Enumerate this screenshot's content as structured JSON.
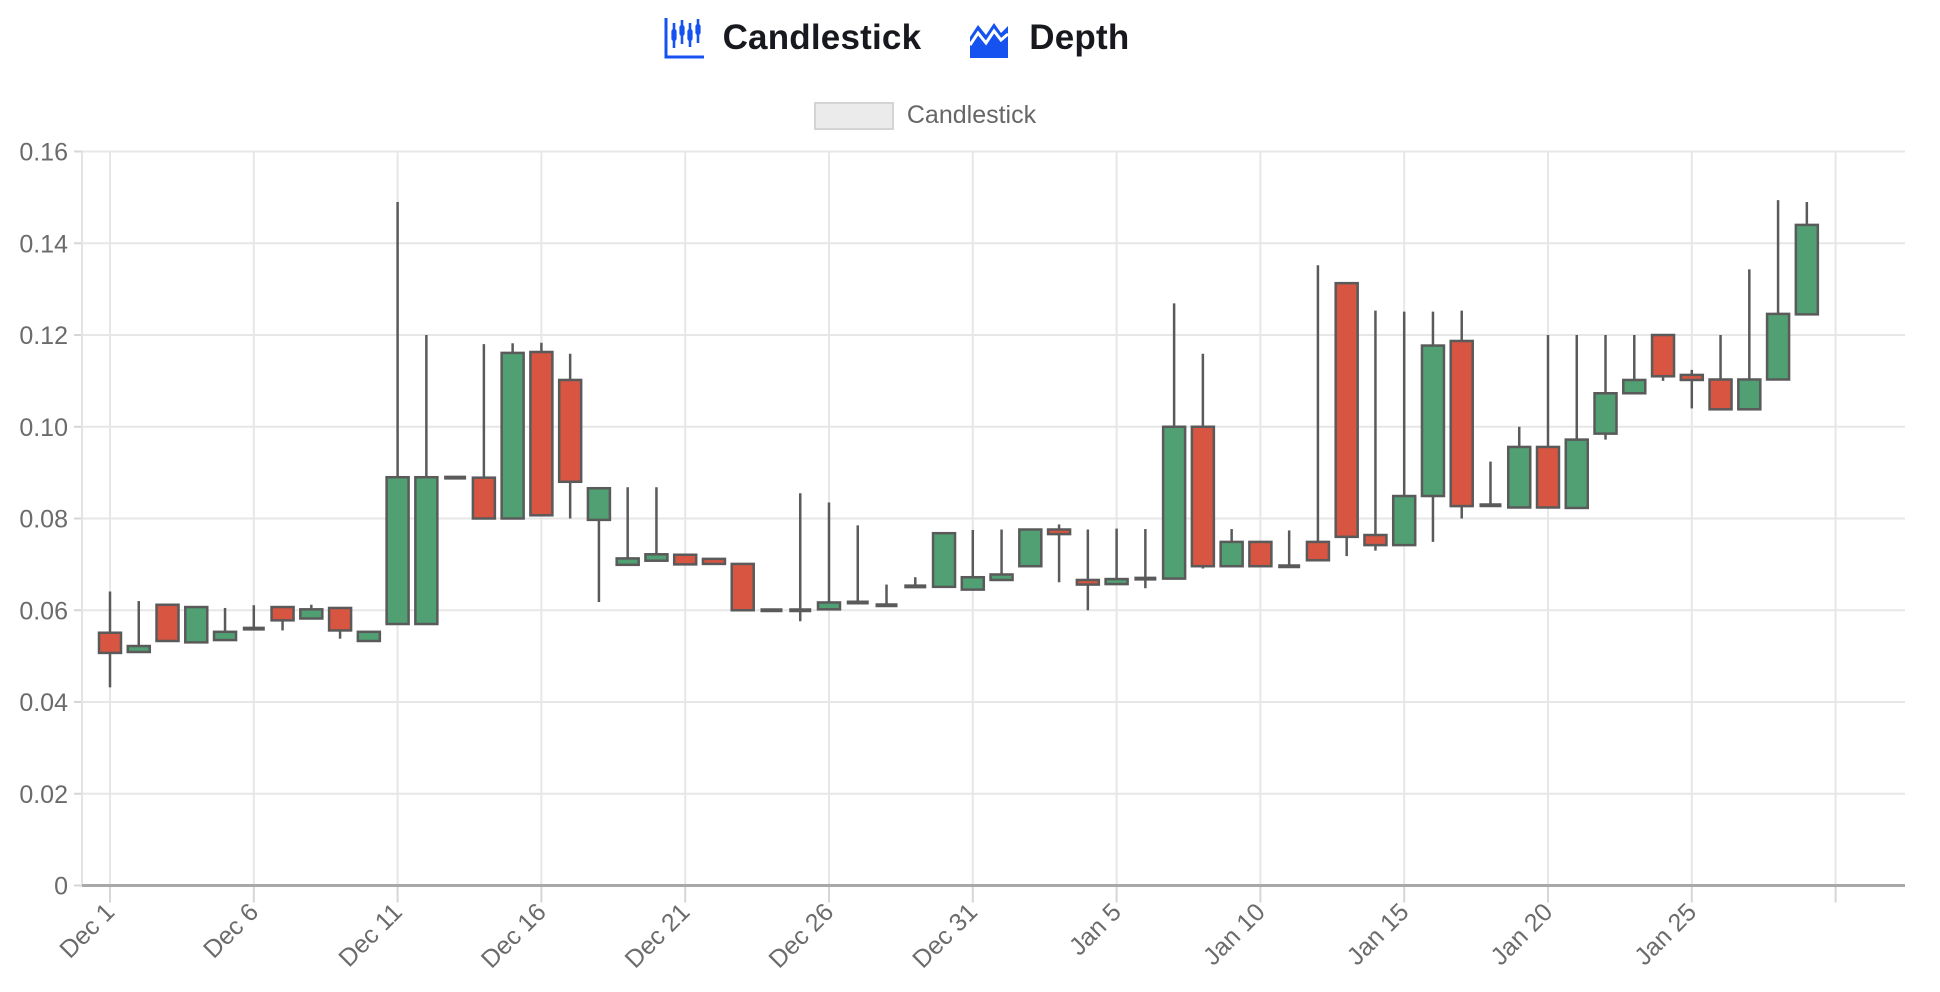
{
  "header": {
    "tabs": [
      {
        "id": "candlestick",
        "label": "Candlestick",
        "icon": "candlestick-icon",
        "active": true
      },
      {
        "id": "depth",
        "label": "Depth",
        "icon": "depth-icon",
        "active": false
      }
    ],
    "accent_color": "#1652F0",
    "text_color": "#17191E"
  },
  "legend": {
    "label": "Candlestick",
    "box_fill": "#EBEBEB",
    "box_border": "#D4D4D4",
    "text_color": "#666666",
    "position": "top"
  },
  "chart_data": {
    "type": "candlestick",
    "title": "",
    "xlabel": "",
    "ylabel": "",
    "ylim": [
      0,
      0.16
    ],
    "grid": true,
    "x_gridline_interval": 5,
    "x_tick_labels": [
      "Dec 1",
      "Dec 6",
      "Dec 11",
      "Dec 16",
      "Dec 21",
      "Dec 26",
      "Dec 31",
      "Jan 5",
      "Jan 10",
      "Jan 15",
      "Jan 20",
      "Jan 25"
    ],
    "y_tick_labels": [
      "0",
      "0.02",
      "0.04",
      "0.06",
      "0.08",
      "0.10",
      "0.12",
      "0.14",
      "0.16"
    ],
    "colors": {
      "up": "#50A073",
      "down": "#D75541",
      "unchanged": "#5A5A5A",
      "border": "#5A5A5A",
      "grid": "#E7E7E7",
      "axis_line": "#A8A8A8",
      "tick_mark": "#D6D6D6",
      "tick_text": "#6B6B6B"
    },
    "candles": [
      {
        "date": "Dec 1",
        "o": 0.0551,
        "h": 0.0641,
        "l": 0.0432,
        "c": 0.0507
      },
      {
        "date": "Dec 2",
        "o": 0.0509,
        "h": 0.062,
        "l": 0.0509,
        "c": 0.0522
      },
      {
        "date": "Dec 3",
        "o": 0.0612,
        "h": 0.0612,
        "l": 0.0533,
        "c": 0.0533
      },
      {
        "date": "Dec 4",
        "o": 0.053,
        "h": 0.0607,
        "l": 0.053,
        "c": 0.0607
      },
      {
        "date": "Dec 5",
        "o": 0.0535,
        "h": 0.0605,
        "l": 0.0535,
        "c": 0.0553
      },
      {
        "date": "Dec 6",
        "o": 0.056,
        "h": 0.0611,
        "l": 0.056,
        "c": 0.056
      },
      {
        "date": "Dec 7",
        "o": 0.0607,
        "h": 0.0607,
        "l": 0.0556,
        "c": 0.0578
      },
      {
        "date": "Dec 8",
        "o": 0.0582,
        "h": 0.0612,
        "l": 0.0582,
        "c": 0.0602
      },
      {
        "date": "Dec 9",
        "o": 0.0605,
        "h": 0.0605,
        "l": 0.0538,
        "c": 0.0556
      },
      {
        "date": "Dec 10",
        "o": 0.0533,
        "h": 0.0553,
        "l": 0.0533,
        "c": 0.0553
      },
      {
        "date": "Dec 11",
        "o": 0.057,
        "h": 0.149,
        "l": 0.057,
        "c": 0.089
      },
      {
        "date": "Dec 12",
        "o": 0.057,
        "h": 0.12,
        "l": 0.057,
        "c": 0.089
      },
      {
        "date": "Dec 13",
        "o": 0.0889,
        "h": 0.0889,
        "l": 0.0889,
        "c": 0.0889
      },
      {
        "date": "Dec 14",
        "o": 0.0889,
        "h": 0.118,
        "l": 0.08,
        "c": 0.08
      },
      {
        "date": "Dec 15",
        "o": 0.08,
        "h": 0.1182,
        "l": 0.08,
        "c": 0.1161
      },
      {
        "date": "Dec 16",
        "o": 0.1163,
        "h": 0.1183,
        "l": 0.0807,
        "c": 0.0807
      },
      {
        "date": "Dec 17",
        "o": 0.1102,
        "h": 0.1159,
        "l": 0.08,
        "c": 0.088
      },
      {
        "date": "Dec 18",
        "o": 0.0797,
        "h": 0.0866,
        "l": 0.0618,
        "c": 0.0866
      },
      {
        "date": "Dec 19",
        "o": 0.0699,
        "h": 0.0868,
        "l": 0.0699,
        "c": 0.0713
      },
      {
        "date": "Dec 20",
        "o": 0.0708,
        "h": 0.0868,
        "l": 0.0708,
        "c": 0.0722
      },
      {
        "date": "Dec 21",
        "o": 0.0721,
        "h": 0.0721,
        "l": 0.07,
        "c": 0.07
      },
      {
        "date": "Dec 22",
        "o": 0.0712,
        "h": 0.0712,
        "l": 0.0701,
        "c": 0.0701
      },
      {
        "date": "Dec 23",
        "o": 0.0701,
        "h": 0.0701,
        "l": 0.06,
        "c": 0.06
      },
      {
        "date": "Dec 24",
        "o": 0.06,
        "h": 0.06,
        "l": 0.06,
        "c": 0.06
      },
      {
        "date": "Dec 25",
        "o": 0.06,
        "h": 0.0855,
        "l": 0.0576,
        "c": 0.06
      },
      {
        "date": "Dec 26",
        "o": 0.0602,
        "h": 0.0835,
        "l": 0.0602,
        "c": 0.0617
      },
      {
        "date": "Dec 27",
        "o": 0.0617,
        "h": 0.0785,
        "l": 0.0617,
        "c": 0.0617
      },
      {
        "date": "Dec 28",
        "o": 0.0611,
        "h": 0.0656,
        "l": 0.0611,
        "c": 0.0611
      },
      {
        "date": "Dec 29",
        "o": 0.0652,
        "h": 0.0672,
        "l": 0.0652,
        "c": 0.0652
      },
      {
        "date": "Dec 30",
        "o": 0.0651,
        "h": 0.0768,
        "l": 0.0651,
        "c": 0.0768
      },
      {
        "date": "Dec 31",
        "o": 0.0645,
        "h": 0.0775,
        "l": 0.0645,
        "c": 0.0672
      },
      {
        "date": "Jan 1",
        "o": 0.0666,
        "h": 0.0776,
        "l": 0.0666,
        "c": 0.0678
      },
      {
        "date": "Jan 2",
        "o": 0.0696,
        "h": 0.0776,
        "l": 0.0696,
        "c": 0.0776
      },
      {
        "date": "Jan 3",
        "o": 0.0776,
        "h": 0.0787,
        "l": 0.0661,
        "c": 0.0766
      },
      {
        "date": "Jan 4",
        "o": 0.0666,
        "h": 0.0776,
        "l": 0.06,
        "c": 0.0656
      },
      {
        "date": "Jan 5",
        "o": 0.0657,
        "h": 0.0778,
        "l": 0.0657,
        "c": 0.0668
      },
      {
        "date": "Jan 6",
        "o": 0.0669,
        "h": 0.0777,
        "l": 0.0648,
        "c": 0.0669
      },
      {
        "date": "Jan 7",
        "o": 0.0669,
        "h": 0.1269,
        "l": 0.0669,
        "c": 0.1
      },
      {
        "date": "Jan 8",
        "o": 0.1,
        "h": 0.1159,
        "l": 0.0691,
        "c": 0.0696
      },
      {
        "date": "Jan 9",
        "o": 0.0696,
        "h": 0.0777,
        "l": 0.0696,
        "c": 0.0749
      },
      {
        "date": "Jan 10",
        "o": 0.0749,
        "h": 0.0749,
        "l": 0.0696,
        "c": 0.0696
      },
      {
        "date": "Jan 11",
        "o": 0.0696,
        "h": 0.0774,
        "l": 0.0696,
        "c": 0.0696
      },
      {
        "date": "Jan 12",
        "o": 0.0749,
        "h": 0.1352,
        "l": 0.0709,
        "c": 0.0709
      },
      {
        "date": "Jan 13",
        "o": 0.1313,
        "h": 0.1313,
        "l": 0.0718,
        "c": 0.076
      },
      {
        "date": "Jan 14",
        "o": 0.0764,
        "h": 0.1253,
        "l": 0.073,
        "c": 0.0742
      },
      {
        "date": "Jan 15",
        "o": 0.0742,
        "h": 0.1251,
        "l": 0.0742,
        "c": 0.0849
      },
      {
        "date": "Jan 16",
        "o": 0.0849,
        "h": 0.1251,
        "l": 0.0749,
        "c": 0.1177
      },
      {
        "date": "Jan 17",
        "o": 0.1187,
        "h": 0.1253,
        "l": 0.08,
        "c": 0.0827
      },
      {
        "date": "Jan 18",
        "o": 0.0829,
        "h": 0.0924,
        "l": 0.0829,
        "c": 0.0829
      },
      {
        "date": "Jan 19",
        "o": 0.0824,
        "h": 0.1,
        "l": 0.0824,
        "c": 0.0956
      },
      {
        "date": "Jan 20",
        "o": 0.0956,
        "h": 0.12,
        "l": 0.0824,
        "c": 0.0824
      },
      {
        "date": "Jan 21",
        "o": 0.0823,
        "h": 0.12,
        "l": 0.0823,
        "c": 0.0972
      },
      {
        "date": "Jan 22",
        "o": 0.0985,
        "h": 0.12,
        "l": 0.0972,
        "c": 0.1073
      },
      {
        "date": "Jan 23",
        "o": 0.1073,
        "h": 0.12,
        "l": 0.1073,
        "c": 0.1102
      },
      {
        "date": "Jan 24",
        "o": 0.12,
        "h": 0.12,
        "l": 0.11,
        "c": 0.111
      },
      {
        "date": "Jan 25",
        "o": 0.1113,
        "h": 0.1124,
        "l": 0.104,
        "c": 0.1102
      },
      {
        "date": "Jan 26",
        "o": 0.1103,
        "h": 0.12,
        "l": 0.1038,
        "c": 0.1038
      },
      {
        "date": "Jan 27",
        "o": 0.1038,
        "h": 0.1343,
        "l": 0.1038,
        "c": 0.1103
      },
      {
        "date": "Jan 28",
        "o": 0.1103,
        "h": 0.1494,
        "l": 0.1103,
        "c": 0.1246
      },
      {
        "date": "Jan 29",
        "o": 0.1245,
        "h": 0.149,
        "l": 0.1245,
        "c": 0.144
      }
    ]
  }
}
